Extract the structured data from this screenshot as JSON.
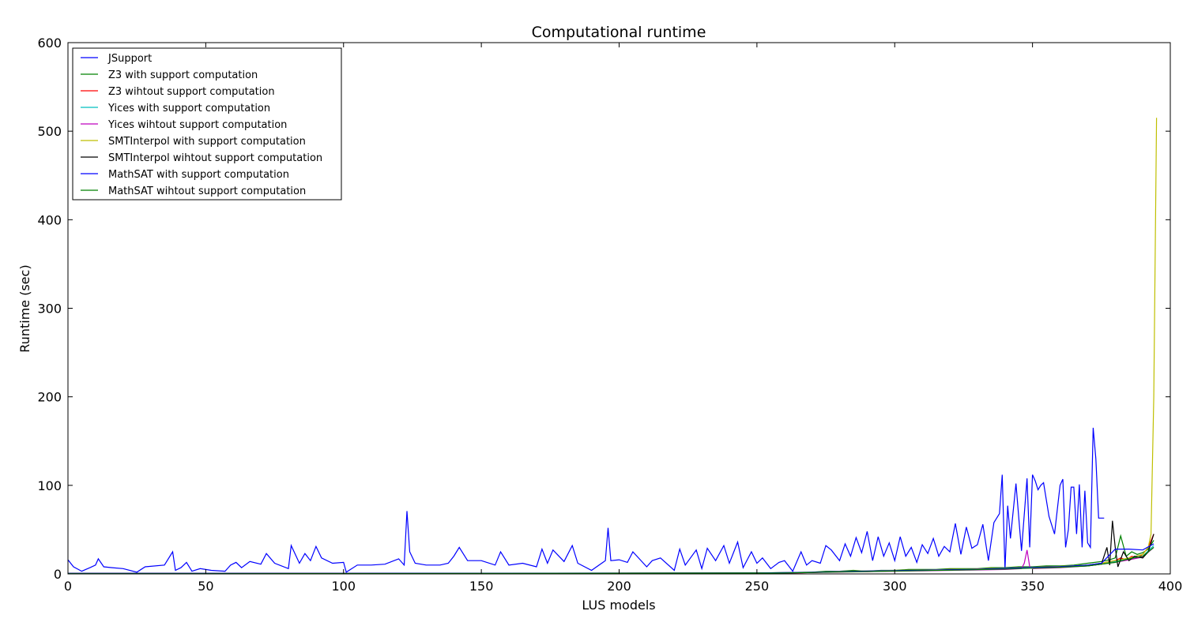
{
  "chart_data": {
    "type": "line",
    "title": "Computational runtime",
    "xlabel": "LUS models",
    "ylabel": "Runtime (sec)",
    "xlim": [
      0,
      400
    ],
    "ylim": [
      0,
      600
    ],
    "xticks": [
      0,
      50,
      100,
      150,
      200,
      250,
      300,
      350,
      400
    ],
    "yticks": [
      0,
      100,
      200,
      300,
      400,
      500,
      600
    ],
    "grid": false,
    "legend_position": "top-left",
    "series": [
      {
        "name": "JSupport",
        "color": "#0000ff",
        "x": [
          0,
          2,
          5,
          8,
          10,
          11,
          13,
          16,
          20,
          25,
          28,
          35,
          38,
          39,
          41,
          43,
          45,
          48,
          52,
          57,
          59,
          61,
          63,
          66,
          70,
          72,
          75,
          80,
          81,
          84,
          86,
          88,
          90,
          92,
          96,
          100,
          101,
          105,
          110,
          115,
          120,
          122,
          123,
          124,
          126,
          130,
          135,
          138,
          140,
          142,
          145,
          150,
          155,
          157,
          160,
          165,
          170,
          172,
          174,
          176,
          180,
          183,
          185,
          190,
          195,
          196,
          197,
          200,
          203,
          205,
          210,
          212,
          215,
          220,
          222,
          224,
          228,
          230,
          232,
          235,
          238,
          240,
          243,
          245,
          248,
          250,
          252,
          255,
          258,
          260,
          263,
          266,
          268,
          270,
          273,
          275,
          277,
          280,
          282,
          284,
          286,
          288,
          290,
          292,
          294,
          296,
          298,
          300,
          302,
          304,
          306,
          308,
          310,
          312,
          314,
          316,
          318,
          320,
          322,
          324,
          326,
          328,
          330,
          332,
          334,
          336,
          338,
          339,
          340,
          341,
          342,
          344,
          346,
          348,
          349,
          350,
          351,
          352,
          353,
          354,
          356,
          358,
          360,
          361,
          362,
          363,
          364,
          365,
          366,
          367,
          368,
          369,
          370,
          371,
          372,
          373,
          374,
          375,
          376
        ],
        "values": [
          16,
          8,
          3,
          7,
          10,
          17,
          8,
          7,
          6,
          2,
          8,
          10,
          25,
          4,
          7,
          13,
          3,
          6,
          4,
          3,
          10,
          13,
          7,
          14,
          11,
          23,
          12,
          6,
          32,
          12,
          23,
          15,
          31,
          18,
          12,
          13,
          2,
          10,
          10,
          11,
          17,
          10,
          71,
          25,
          12,
          10,
          10,
          12,
          20,
          30,
          15,
          15,
          10,
          25,
          10,
          12,
          8,
          28,
          12,
          27,
          14,
          32,
          12,
          4,
          15,
          52,
          15,
          16,
          13,
          25,
          8,
          15,
          18,
          4,
          28,
          10,
          27,
          6,
          29,
          15,
          32,
          12,
          36,
          7,
          25,
          12,
          18,
          6,
          13,
          15,
          3,
          25,
          10,
          15,
          12,
          32,
          27,
          15,
          34,
          20,
          41,
          24,
          48,
          15,
          42,
          20,
          35,
          15,
          42,
          20,
          30,
          13,
          33,
          23,
          40,
          20,
          31,
          25,
          57,
          22,
          53,
          29,
          33,
          56,
          15,
          58,
          68,
          112,
          5,
          77,
          40,
          102,
          26,
          108,
          30,
          112,
          105,
          95,
          100,
          103,
          65,
          45,
          100,
          107,
          30,
          50,
          98,
          98,
          45,
          101,
          30,
          94,
          35,
          30,
          165,
          130,
          63,
          63,
          63
        ]
      },
      {
        "name": "Z3 with support computation",
        "color": "#008000",
        "x": [
          0,
          50,
          100,
          150,
          200,
          250,
          260,
          270,
          275,
          280,
          285,
          290,
          295,
          300,
          305,
          310,
          315,
          320,
          325,
          330,
          335,
          340,
          345,
          350,
          355,
          360,
          365,
          370,
          375,
          378,
          380,
          382,
          384,
          386,
          388,
          390,
          392,
          394
        ],
        "values": [
          0.5,
          0.5,
          0.6,
          0.7,
          0.8,
          1,
          1.5,
          2,
          3,
          3,
          4,
          3,
          4,
          4,
          5,
          5,
          5,
          6,
          6,
          6,
          7,
          7,
          8,
          8,
          9,
          9,
          10,
          12,
          14,
          16,
          18,
          43,
          20,
          25,
          22,
          24,
          28,
          38
        ]
      },
      {
        "name": "Z3 wihtout support computation",
        "color": "#ff0000",
        "x": [
          0,
          50,
          100,
          150,
          200,
          250,
          260,
          270,
          275,
          280,
          285,
          290,
          295,
          300,
          305,
          310,
          315,
          320,
          325,
          330,
          335,
          340,
          345,
          350,
          355,
          360,
          365,
          370,
          375,
          378,
          380,
          382,
          384,
          386,
          388,
          390,
          392,
          394
        ],
        "values": [
          0.3,
          0.3,
          0.4,
          0.5,
          0.6,
          0.8,
          1,
          1.5,
          2,
          2.5,
          3,
          2.5,
          3,
          3.5,
          4,
          4,
          4.5,
          5,
          5,
          5.5,
          6,
          6,
          7,
          7,
          8,
          8,
          9,
          10,
          12,
          14,
          15,
          18,
          16,
          20,
          18,
          22,
          30,
          45
        ]
      },
      {
        "name": "Yices with support computation",
        "color": "#00bfbf",
        "x": [
          0,
          50,
          100,
          150,
          200,
          250,
          260,
          270,
          280,
          290,
          300,
          310,
          320,
          330,
          340,
          350,
          360,
          370,
          375,
          380,
          385,
          390,
          394
        ],
        "values": [
          0.4,
          0.4,
          0.5,
          0.6,
          0.7,
          0.9,
          1.2,
          1.8,
          2.5,
          3,
          3.5,
          4,
          4.5,
          5,
          6,
          7,
          8,
          10,
          12,
          14,
          18,
          20,
          32
        ]
      },
      {
        "name": "Yices wihtout support computation",
        "color": "#bf00bf",
        "x": [
          0,
          50,
          100,
          150,
          200,
          250,
          260,
          270,
          280,
          290,
          300,
          310,
          320,
          330,
          340,
          346,
          347,
          348,
          349,
          350,
          360,
          370,
          375,
          380,
          385,
          390,
          394
        ],
        "values": [
          0.3,
          0.3,
          0.4,
          0.5,
          0.6,
          0.8,
          1,
          1.5,
          2,
          2.5,
          3,
          3.5,
          4,
          4.5,
          5,
          6,
          12,
          27,
          8,
          6,
          7,
          9,
          11,
          13,
          16,
          19,
          30
        ]
      },
      {
        "name": "SMTInterpol with support computation",
        "color": "#bfbf00",
        "x": [
          0,
          50,
          100,
          150,
          200,
          250,
          260,
          270,
          280,
          290,
          300,
          310,
          320,
          330,
          340,
          350,
          360,
          370,
          375,
          380,
          385,
          390,
          392,
          393,
          394,
          395
        ],
        "values": [
          0.6,
          0.6,
          0.7,
          0.8,
          1,
          1.2,
          1.5,
          2,
          3,
          3.5,
          4,
          4.5,
          5,
          5.5,
          6.5,
          7.5,
          8.5,
          10,
          12,
          15,
          18,
          22,
          30,
          45,
          200,
          515
        ]
      },
      {
        "name": "SMTInterpol wihtout support computation",
        "color": "#000000",
        "x": [
          0,
          50,
          100,
          150,
          200,
          250,
          260,
          270,
          280,
          290,
          300,
          310,
          320,
          330,
          340,
          350,
          360,
          370,
          375,
          377,
          378,
          379,
          380,
          381,
          383,
          385,
          387,
          390,
          392,
          394
        ],
        "values": [
          0.5,
          0.5,
          0.6,
          0.7,
          0.8,
          1,
          1.2,
          1.7,
          2.5,
          3,
          3.5,
          4,
          4.5,
          5,
          6,
          7,
          8,
          9,
          11,
          30,
          10,
          60,
          30,
          8,
          25,
          15,
          20,
          18,
          25,
          45
        ]
      },
      {
        "name": "MathSAT with support computation",
        "color": "#0000ff",
        "x": [
          0,
          50,
          100,
          150,
          200,
          250,
          260,
          270,
          280,
          290,
          300,
          310,
          320,
          330,
          340,
          350,
          360,
          370,
          375,
          380,
          385,
          390,
          394
        ],
        "values": [
          0.5,
          0.5,
          0.6,
          0.7,
          0.9,
          1.1,
          1.4,
          1.9,
          2.7,
          3.2,
          3.7,
          4.2,
          4.7,
          5.2,
          6.2,
          7.2,
          8.2,
          10,
          12,
          28,
          28,
          27,
          34
        ]
      },
      {
        "name": "MathSAT wihtout support computation",
        "color": "#008000",
        "x": [
          0,
          50,
          100,
          150,
          200,
          250,
          260,
          270,
          280,
          290,
          300,
          310,
          320,
          330,
          340,
          350,
          360,
          370,
          375,
          380,
          385,
          390,
          394
        ],
        "values": [
          0.3,
          0.3,
          0.4,
          0.5,
          0.7,
          0.9,
          1.1,
          1.6,
          2.2,
          2.7,
          3.2,
          3.7,
          4.2,
          4.7,
          5.5,
          6.5,
          7.5,
          9,
          11,
          13,
          17,
          20,
          30
        ]
      }
    ]
  }
}
